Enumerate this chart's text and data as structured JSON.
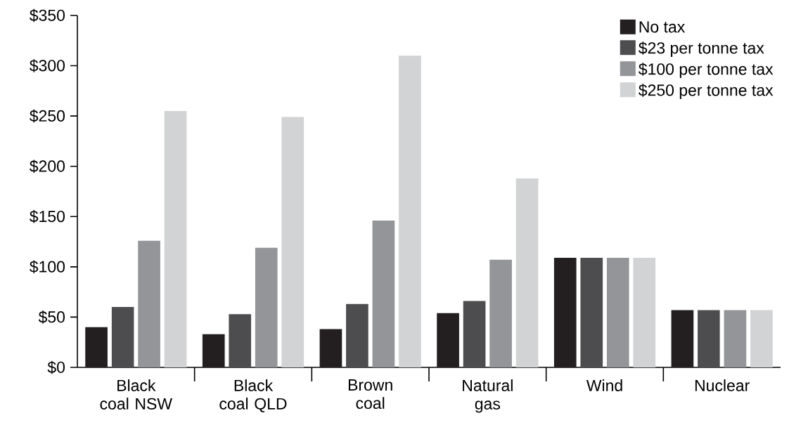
{
  "chart_data": {
    "type": "bar",
    "categories": [
      "Black coal NSW",
      "Black coal QLD",
      "Brown coal",
      "Natural gas",
      "Wind",
      "Nuclear"
    ],
    "series": [
      {
        "name": "No tax",
        "color": "#231f20",
        "values": [
          40,
          33,
          38,
          54,
          109,
          57
        ]
      },
      {
        "name": "$23 per tonne tax",
        "color": "#4d4d4f",
        "values": [
          60,
          53,
          63,
          66,
          109,
          57
        ]
      },
      {
        "name": "$100 per tonne tax",
        "color": "#939598",
        "values": [
          126,
          119,
          146,
          107,
          109,
          57
        ]
      },
      {
        "name": "$250 per tonne tax",
        "color": "#d1d3d4",
        "values": [
          255,
          249,
          310,
          188,
          109,
          57
        ]
      }
    ],
    "ylim": [
      0,
      350
    ],
    "yticks": [
      {
        "value": 0,
        "label": "$0"
      },
      {
        "value": 50,
        "label": "$50"
      },
      {
        "value": 100,
        "label": "$100"
      },
      {
        "value": 150,
        "label": "$150"
      },
      {
        "value": 200,
        "label": "$200"
      },
      {
        "value": 250,
        "label": "$250"
      },
      {
        "value": 300,
        "label": "$300"
      },
      {
        "value": 350,
        "label": "$350"
      }
    ],
    "legend": "top right",
    "grid": false
  }
}
